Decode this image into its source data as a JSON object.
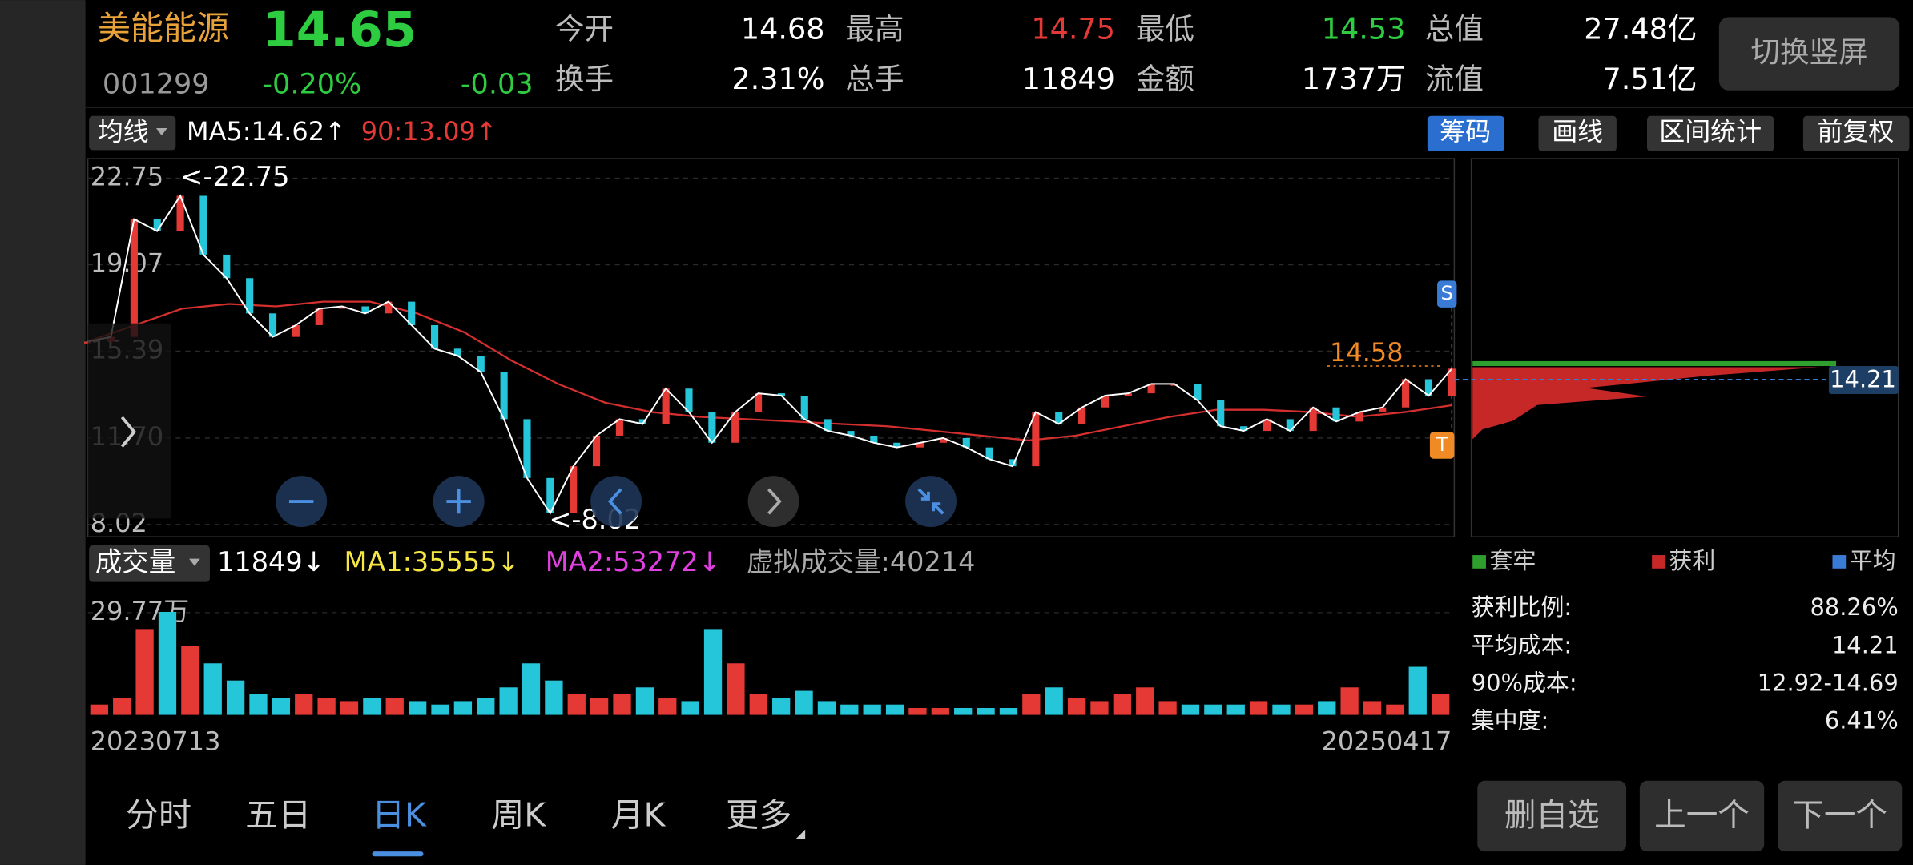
{
  "header": {
    "name": "美能能源",
    "price": "14.65",
    "code": "001299",
    "change_pct": "-0.20%",
    "change": "-0.03",
    "stats": [
      {
        "label": "今开",
        "value": "14.68"
      },
      {
        "label": "最高",
        "value": "14.75"
      },
      {
        "label": "最低",
        "value": "14.53"
      },
      {
        "label": "总值",
        "value": "27.48亿"
      },
      {
        "label": "换手",
        "value": "2.31%"
      },
      {
        "label": "总手",
        "value": "11849"
      },
      {
        "label": "金额",
        "value": "1737万"
      },
      {
        "label": "流值",
        "value": "7.51亿"
      }
    ],
    "switch_button": "切换竖屏"
  },
  "kline": {
    "indicator": "均线",
    "ma5": "MA5:14.62↑",
    "ma90": "90:13.09↑",
    "tabs": [
      "筹码",
      "画线",
      "区间统计",
      "前复权"
    ],
    "ylim": [
      7.5,
      23.58
    ],
    "yticks": [
      22.75,
      19.07,
      15.39,
      {
        "value": 11.7,
        "label": "11.70"
      },
      8.02
    ],
    "high_label": "<-22.75",
    "low_label": "<-8.02",
    "last_label": "14.58",
    "markers": [
      "S",
      "T"
    ],
    "close": [
      15.8,
      16,
      21,
      20.5,
      22,
      19.5,
      18.5,
      17,
      16,
      16.5,
      17.2,
      17.3,
      17,
      17.5,
      16.5,
      15.5,
      15.2,
      14.5,
      12.5,
      10,
      8.5,
      10.5,
      11.8,
      12.5,
      12.3,
      13.8,
      12.8,
      11.5,
      12.8,
      13.6,
      13.5,
      12.5,
      12,
      11.8,
      11.5,
      11.3,
      11.5,
      11.7,
      11.3,
      10.8,
      10.5,
      12.8,
      12.3,
      13,
      13.5,
      13.6,
      14,
      14,
      13.3,
      12.2,
      12,
      12.5,
      12,
      13,
      12.4,
      12.8,
      13,
      14.2,
      13.5,
      14.65
    ],
    "ma90_values": [
      15.8,
      16.5,
      17.2,
      17.4,
      17.3,
      17.5,
      17.5,
      17,
      16.2,
      15,
      14,
      13.2,
      12.8,
      12.6,
      12.5,
      12.4,
      12.3,
      12.2,
      12,
      11.8,
      11.6,
      11.8,
      12.2,
      12.6,
      12.9,
      12.9,
      12.8,
      12.6,
      12.8,
      13.09
    ]
  },
  "volume": {
    "indicator": "成交量",
    "vol": "11849↓",
    "ma1": "MA1:35555↓",
    "ma2": "MA2:53272↓",
    "virtual": "虚拟成交量:40214",
    "ylim": [
      0,
      34.1
    ],
    "ytick": {
      "value": 29.77,
      "label": "29.77万"
    },
    "values": [
      3,
      5,
      25,
      30,
      20,
      15,
      10,
      6,
      5,
      6,
      5,
      4,
      5,
      5,
      4,
      3,
      4,
      5,
      8,
      15,
      10,
      6,
      5,
      6,
      8,
      5,
      4,
      25,
      15,
      6,
      5,
      7,
      4,
      3,
      3,
      3,
      2,
      2,
      2,
      2,
      2,
      6,
      8,
      5,
      4,
      6,
      8,
      4,
      3,
      3,
      3,
      4,
      3,
      3,
      4,
      8,
      4,
      3,
      14,
      6
    ],
    "start_date": "20230713",
    "end_date": "20250417"
  },
  "chips": {
    "legend": [
      "套牢",
      "获利",
      "平均"
    ],
    "avg_label": "14.21",
    "rows": [
      {
        "label": "获利比例:",
        "value": "88.26%"
      },
      {
        "label": "平均成本:",
        "value": "14.21"
      },
      {
        "label": "90%成本:",
        "value": "12.92-14.69"
      },
      {
        "label": "集中度:",
        "value": "6.41%"
      }
    ]
  },
  "tabs": [
    "分时",
    "五日",
    "日K",
    "周K",
    "月K",
    "更多"
  ],
  "buttons": [
    "删自选",
    "上一个",
    "下一个"
  ]
}
